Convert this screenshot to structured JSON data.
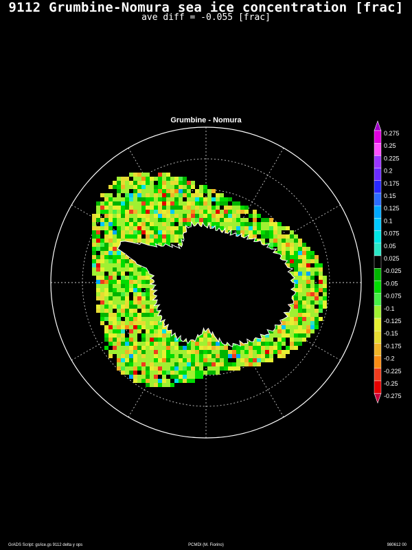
{
  "title": "9112 Grumbine-Nomura sea ice concentration [frac]",
  "subtitle": "ave diff = -0.055 [frac]",
  "map": {
    "label": "Grumbine - Nomura",
    "projection": "south polar stereographic",
    "background_color": "#000000",
    "coast_color": "#ffffff",
    "grid_color": "#cfcfcf"
  },
  "colorbar": {
    "labels": [
      "0.275",
      "0.25",
      "0.225",
      "0.2",
      "0.175",
      "0.15",
      "0.125",
      "0.1",
      "0.075",
      "0.05",
      "0.025",
      "-0.025",
      "-0.05",
      "-0.075",
      "-0.1",
      "-0.125",
      "-0.15",
      "-0.175",
      "-0.2",
      "-0.225",
      "-0.25",
      "-0.275"
    ],
    "colors": [
      "#a000c8",
      "#e000e0",
      "#ff50ff",
      "#9a35ff",
      "#6a2cff",
      "#2828ff",
      "#2c6cff",
      "#00a8ff",
      "#00c8ff",
      "#00e6e6",
      "#2ae6c6",
      "#000000",
      "#00b400",
      "#00dc00",
      "#46f046",
      "#a0f032",
      "#e6f032",
      "#e6dc32",
      "#f0b428",
      "#fa8c14",
      "#f03c1e",
      "#e60000",
      "#c8003c"
    ]
  },
  "footer": {
    "left": "GrADS Script: gs/ice.gs 9112 delta y ops",
    "center": "PCMDI (M. Fiorino)",
    "right": "980612 00"
  }
}
